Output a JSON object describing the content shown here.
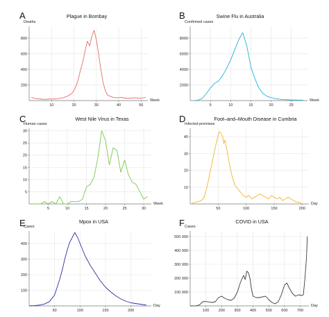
{
  "figure": {
    "background": "#ffffff"
  },
  "chart_data": [
    {
      "id": "A",
      "letter": "A",
      "type": "line",
      "title": "Plague in Bombay",
      "ylabel": "Deaths",
      "xlabel": "Week",
      "color": "#e06f63",
      "xlim": [
        0,
        53
      ],
      "ylim": [
        0,
        950
      ],
      "xticks": [
        10,
        20,
        30,
        40,
        50
      ],
      "yticks": [
        200,
        400,
        600,
        800
      ],
      "ytick_labels": [
        "200",
        "400",
        "600",
        "800"
      ],
      "series": [
        {
          "x": [
            1,
            3,
            5,
            7,
            9,
            11,
            13,
            15,
            17,
            19,
            20,
            21,
            22,
            23,
            24,
            25,
            26,
            27,
            28,
            29,
            30,
            31,
            32,
            33,
            34,
            35,
            37,
            39,
            41,
            43,
            45,
            47,
            49,
            51,
            52
          ],
          "y": [
            40,
            25,
            20,
            15,
            20,
            20,
            25,
            35,
            55,
            90,
            130,
            190,
            280,
            400,
            500,
            640,
            760,
            700,
            820,
            900,
            780,
            600,
            400,
            230,
            130,
            70,
            45,
            35,
            40,
            30,
            30,
            35,
            30,
            35,
            40
          ]
        }
      ]
    },
    {
      "id": "B",
      "letter": "B",
      "type": "line",
      "title": "Swine Flu in Australia",
      "ylabel": "Confirmed cases",
      "xlabel": "Week",
      "color": "#1fb1d8",
      "xlim": [
        0,
        29
      ],
      "ylim": [
        0,
        9500
      ],
      "xticks": [
        5,
        10,
        15,
        20,
        25
      ],
      "yticks": [
        2000,
        4000,
        6000,
        8000
      ],
      "ytick_labels": [
        "2000",
        "4000",
        "6000",
        "8000"
      ],
      "series": [
        {
          "x": [
            1,
            2,
            3,
            4,
            5,
            6,
            7,
            8,
            9,
            10,
            11,
            12,
            13,
            14,
            15,
            16,
            17,
            18,
            19,
            20,
            21,
            22,
            23,
            24,
            25,
            26,
            27,
            28
          ],
          "y": [
            10,
            50,
            300,
            900,
            1600,
            2200,
            2500,
            3200,
            4100,
            5200,
            6500,
            7800,
            8700,
            7000,
            4300,
            2800,
            1600,
            900,
            550,
            380,
            250,
            180,
            130,
            100,
            80,
            70,
            60,
            50
          ]
        }
      ]
    },
    {
      "id": "C",
      "letter": "C",
      "type": "line",
      "title": "West Nile Virus in Texas",
      "ylabel": "Human cases",
      "xlabel": "Week",
      "color": "#79c84d",
      "xlim": [
        0,
        32
      ],
      "ylim": [
        0,
        31
      ],
      "xticks": [
        5,
        10,
        15,
        20,
        25,
        30
      ],
      "yticks": [
        5,
        10,
        15,
        20,
        25,
        30
      ],
      "ytick_labels": [
        "5",
        "10",
        "15",
        "20",
        "25",
        "30"
      ],
      "series": [
        {
          "x": [
            1,
            2,
            3,
            4,
            5,
            6,
            7,
            8,
            9,
            10,
            11,
            12,
            13,
            14,
            15,
            16,
            17,
            18,
            19,
            20,
            21,
            22,
            23,
            24,
            25,
            26,
            27,
            28,
            29,
            30,
            31
          ],
          "y": [
            0,
            0,
            0,
            1,
            0,
            1,
            0,
            3,
            0,
            0,
            1,
            1,
            1,
            2,
            7,
            8,
            11,
            19,
            30,
            26,
            16,
            23,
            22,
            13,
            18,
            12,
            9,
            8,
            5,
            2,
            3
          ]
        }
      ]
    },
    {
      "id": "D",
      "letter": "D",
      "type": "line",
      "title": "Foot–and–Mouth Disease in Cumbria",
      "ylabel": "Infected premises",
      "xlabel": "Day",
      "color": "#f0b62a",
      "xlim": [
        0,
        212
      ],
      "ylim": [
        0,
        45
      ],
      "xticks": [
        50,
        100,
        150,
        200
      ],
      "yticks": [
        10,
        20,
        30,
        40
      ],
      "ytick_labels": [
        "10",
        "20",
        "30",
        "40"
      ],
      "series": [
        {
          "x": [
            1,
            10,
            20,
            25,
            30,
            35,
            40,
            45,
            48,
            50,
            52,
            55,
            58,
            60,
            62,
            65,
            68,
            70,
            73,
            76,
            80,
            85,
            90,
            95,
            100,
            105,
            110,
            115,
            120,
            125,
            130,
            135,
            140,
            145,
            150,
            155,
            160,
            165,
            170,
            175,
            180,
            185,
            190,
            195,
            200
          ],
          "y": [
            0,
            1,
            2,
            4,
            10,
            18,
            26,
            34,
            38,
            41,
            43,
            42,
            40,
            36,
            38,
            33,
            28,
            24,
            19,
            15,
            11,
            9,
            7,
            5,
            4,
            5,
            3,
            4,
            5,
            6,
            5,
            4,
            3,
            5,
            4,
            3,
            4,
            2,
            3,
            4,
            3,
            2,
            1,
            1,
            0
          ]
        }
      ]
    },
    {
      "id": "E",
      "letter": "E",
      "type": "line",
      "title": "Mpox in USA",
      "ylabel": "Cases",
      "xlabel": "Day",
      "color": "#2a2ea3",
      "xlim": [
        0,
        240
      ],
      "ylim": [
        0,
        480
      ],
      "xticks": [
        50,
        100,
        150,
        200
      ],
      "yticks": [
        100,
        200,
        300,
        400
      ],
      "ytick_labels": [
        "100",
        "200",
        "300",
        "400"
      ],
      "series": [
        {
          "x": [
            0,
            10,
            20,
            30,
            40,
            50,
            60,
            65,
            70,
            75,
            80,
            85,
            88,
            90,
            93,
            95,
            100,
            105,
            110,
            115,
            120,
            130,
            140,
            150,
            160,
            170,
            180,
            190,
            200,
            210,
            220,
            230
          ],
          "y": [
            0,
            2,
            5,
            12,
            28,
            70,
            170,
            230,
            300,
            360,
            410,
            440,
            460,
            470,
            450,
            440,
            400,
            360,
            320,
            290,
            260,
            210,
            160,
            120,
            90,
            65,
            45,
            30,
            20,
            15,
            10,
            5
          ]
        }
      ]
    },
    {
      "id": "F",
      "letter": "F",
      "type": "line",
      "title": "COVID in USA",
      "ylabel": "Cases",
      "xlabel": "Day",
      "color": "#3a3a3a",
      "xlim": [
        0,
        755
      ],
      "ylim": [
        0,
        540000
      ],
      "xticks": [
        100,
        200,
        300,
        400,
        500,
        600,
        700
      ],
      "yticks": [
        100000,
        200000,
        300000,
        400000,
        500000
      ],
      "ytick_labels": [
        "100 000",
        "200 000",
        "300 000",
        "400 000",
        "500 000"
      ],
      "series": [
        {
          "x": [
            0,
            40,
            60,
            80,
            100,
            120,
            140,
            160,
            180,
            200,
            220,
            240,
            260,
            280,
            300,
            320,
            340,
            350,
            360,
            370,
            380,
            390,
            400,
            410,
            420,
            440,
            460,
            480,
            500,
            520,
            540,
            560,
            580,
            600,
            615,
            630,
            650,
            670,
            690,
            710,
            720,
            730,
            740,
            745
          ],
          "y": [
            0,
            1000,
            8000,
            30000,
            32000,
            28000,
            25000,
            30000,
            60000,
            70000,
            55000,
            45000,
            40000,
            55000,
            100000,
            170000,
            220000,
            190000,
            250000,
            240000,
            200000,
            120000,
            70000,
            65000,
            60000,
            60000,
            65000,
            70000,
            45000,
            25000,
            15000,
            30000,
            80000,
            150000,
            165000,
            130000,
            90000,
            70000,
            80000,
            75000,
            80000,
            200000,
            350000,
            500000
          ]
        }
      ]
    }
  ]
}
